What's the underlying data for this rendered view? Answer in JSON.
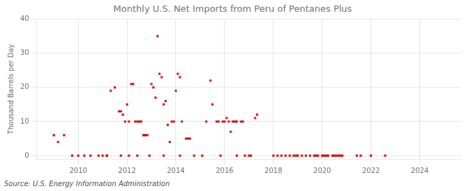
{
  "chart_data": {
    "type": "scatter",
    "title": "Monthly U.S. Net Imports from Peru of Pentanes Plus",
    "ylabel": "Thousand Barrels per Day",
    "annotation": "Source: U.S. Energy Information Administration",
    "color": "#cc0000",
    "marker": "square",
    "grid": true,
    "xlim": [
      2008.3,
      2025.7
    ],
    "ylim": [
      -1,
      40
    ],
    "xticks": [
      2010,
      2012,
      2014,
      2016,
      2018,
      2020,
      2022,
      2024
    ],
    "yticks": [
      0,
      10,
      20,
      30,
      40
    ],
    "x": [
      2009.0,
      2009.17,
      2009.42,
      2010.83,
      2011.0,
      2011.17,
      2011.33,
      2011.5,
      2011.67,
      2011.75,
      2011.83,
      2011.92,
      2012.0,
      2012.08,
      2012.17,
      2012.25,
      2012.33,
      2012.42,
      2012.5,
      2012.58,
      2012.67,
      2012.75,
      2012.83,
      2013.0,
      2013.08,
      2013.17,
      2013.25,
      2013.33,
      2013.42,
      2013.5,
      2013.58,
      2013.67,
      2013.75,
      2013.83,
      2013.92,
      2014.0,
      2014.08,
      2014.17,
      2014.25,
      2014.42,
      2014.5,
      2014.58,
      2015.25,
      2015.42,
      2015.5,
      2015.67,
      2015.75,
      2015.92,
      2016.0,
      2016.08,
      2016.17,
      2016.25,
      2016.33,
      2016.42,
      2016.5,
      2016.67,
      2016.75,
      2017.25,
      2017.33,
      2009.75,
      2010.0,
      2010.25,
      2010.5,
      2011.17,
      2011.75,
      2012.08,
      2012.42,
      2012.92,
      2013.5,
      2014.17,
      2014.75,
      2015.08,
      2015.83,
      2016.5,
      2016.83,
      2017.0,
      2017.08,
      2018.0,
      2018.17,
      2018.33,
      2018.5,
      2018.67,
      2018.83,
      2018.92,
      2019.0,
      2019.17,
      2019.33,
      2019.5,
      2019.67,
      2019.75,
      2019.83,
      2020.0,
      2020.08,
      2020.17,
      2020.25,
      2020.42,
      2020.5,
      2020.58,
      2020.67,
      2020.75,
      2020.83,
      2021.42,
      2021.58,
      2022.0,
      2022.58
    ],
    "values": [
      6,
      4,
      6,
      0,
      0,
      0,
      19,
      20,
      13,
      13,
      12,
      10,
      15,
      10,
      21,
      21,
      10,
      10,
      10,
      10,
      6,
      6,
      6,
      21,
      20,
      17,
      35,
      24,
      23,
      15,
      16,
      9,
      4,
      10,
      10,
      19,
      24,
      23,
      10,
      5,
      5,
      5,
      10,
      22,
      15,
      10,
      10,
      10,
      10,
      11,
      10,
      7,
      10,
      10,
      10,
      10,
      10,
      11,
      12,
      0,
      0,
      0,
      0,
      0,
      0,
      0,
      0,
      0,
      0,
      0,
      0,
      0,
      0,
      0,
      0,
      0,
      0,
      0,
      0,
      0,
      0,
      0,
      0,
      0,
      0,
      0,
      0,
      0,
      0,
      0,
      0,
      0,
      0,
      0,
      0,
      0,
      0,
      0,
      0,
      0,
      0,
      0,
      0,
      0,
      0
    ]
  }
}
